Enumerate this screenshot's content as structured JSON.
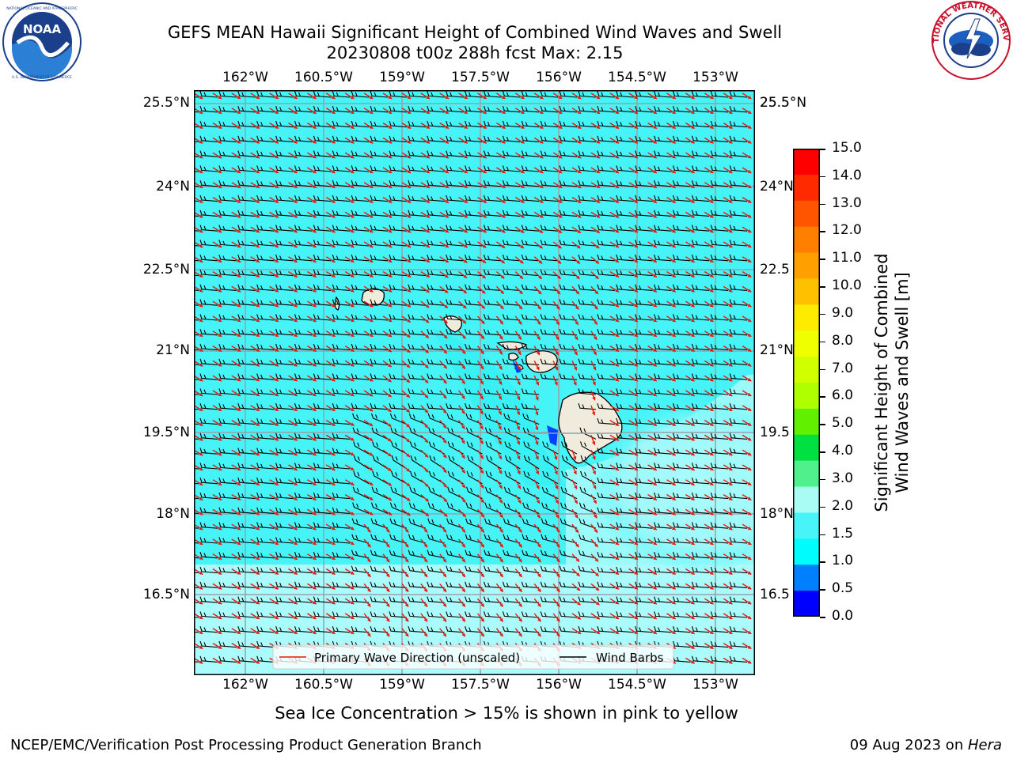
{
  "title": {
    "line1": "GEFS MEAN Hawaii Significant Height of Combined Wind Waves and Swell",
    "line2": "20230808 t00z 288h fcst   Max: 2.15"
  },
  "logos": {
    "left": {
      "name": "NOAA",
      "ring_text": "NATIONAL OCEANIC AND ATMOSPHERIC ADMINISTRATION · U.S. DEPARTMENT OF COMMERCE"
    },
    "right": {
      "name": "NATIONAL WEATHER SERVICE"
    }
  },
  "map": {
    "lon_labels": [
      "162°W",
      "160.5°W",
      "159°W",
      "157.5°W",
      "156°W",
      "154.5°W",
      "153°W"
    ],
    "lat_labels_left": [
      "25.5°N",
      "24°N",
      "22.5°N",
      "21°N",
      "19.5°N",
      "18°N",
      "16.5°N"
    ],
    "lat_labels_right": [
      "25.5°N",
      "24°N",
      "22.5",
      "21°N",
      "19.5",
      "18°N",
      "16.5"
    ],
    "sea_color": "#46f4f8",
    "light_color": "#aafcfc",
    "land_color": "#efebdd",
    "legend": {
      "wave_label": "Primary Wave Direction (unscaled)",
      "barb_label": "Wind Barbs",
      "wave_color": "#e8190c",
      "barb_color": "#000000"
    }
  },
  "colorbar": {
    "ticks": [
      "15.0",
      "14.0",
      "13.0",
      "12.0",
      "11.0",
      "10.0",
      "9.0",
      "8.0",
      "7.0",
      "6.0",
      "5.0",
      "4.0",
      "3.0",
      "2.0",
      "1.5",
      "1.0",
      "0.5",
      "0.0"
    ],
    "colors_top_to_bottom": [
      "#ff0000",
      "#ff2a00",
      "#ff5500",
      "#ff8000",
      "#ffa000",
      "#ffc000",
      "#ffeb00",
      "#f0ff00",
      "#d0ff00",
      "#b0ff00",
      "#60f000",
      "#00e040",
      "#50f08c",
      "#a8fcf4",
      "#48f4f8",
      "#00fcfc",
      "#0080ff",
      "#0000ff"
    ],
    "axis_title_line1": "Significant Height of Combined",
    "axis_title_line2": "Wind Waves and Swell [m]"
  },
  "note": "Sea Ice Concentration > 15% is shown in pink to yellow",
  "footer": {
    "left": "NCEP/EMC/Verification Post Processing Product Generation Branch",
    "right_date": "09 Aug 2023 on ",
    "right_host": "Hera"
  }
}
